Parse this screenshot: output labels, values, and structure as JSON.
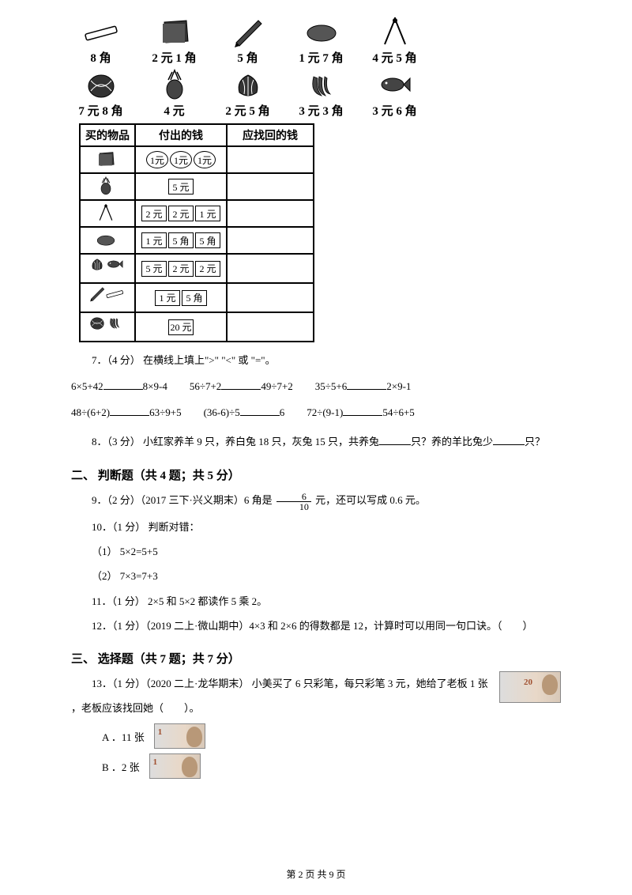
{
  "items_row1": [
    {
      "label": "8 角",
      "svg": "ruler"
    },
    {
      "label": "2 元 1 角",
      "svg": "notebook"
    },
    {
      "label": "5 角",
      "svg": "pencil"
    },
    {
      "label": "1 元 7 角",
      "svg": "eraser"
    },
    {
      "label": "4 元 5 角",
      "svg": "compass"
    }
  ],
  "items_row2": [
    {
      "label": "7 元 8 角",
      "svg": "melon"
    },
    {
      "label": "4 元",
      "svg": "pineapple"
    },
    {
      "label": "2 元 5 角",
      "svg": "cabbage"
    },
    {
      "label": "3 元 3 角",
      "svg": "banana"
    },
    {
      "label": "3 元 6 角",
      "svg": "fish"
    }
  ],
  "shop": {
    "headers": [
      "买的物品",
      "付出的钱",
      "应找回的钱"
    ],
    "rows": [
      {
        "item": "notebook",
        "pay": [
          {
            "t": "coin",
            "v": "1元"
          },
          {
            "t": "coin",
            "v": "1元"
          },
          {
            "t": "coin",
            "v": "1元"
          }
        ]
      },
      {
        "item": "pineapple",
        "pay": [
          {
            "t": "bill",
            "v": "5 元"
          }
        ]
      },
      {
        "item": "compass",
        "pay": [
          {
            "t": "bill",
            "v": "2 元"
          },
          {
            "t": "bill",
            "v": "2 元"
          },
          {
            "t": "bill",
            "v": "1 元"
          }
        ]
      },
      {
        "item": "eraser",
        "pay": [
          {
            "t": "bill",
            "v": "1 元"
          },
          {
            "t": "bill",
            "v": "5 角"
          },
          {
            "t": "bill",
            "v": "5 角"
          }
        ]
      },
      {
        "item": "cabbage+fish",
        "pay": [
          {
            "t": "bill",
            "v": "5 元"
          },
          {
            "t": "bill",
            "v": "2 元"
          },
          {
            "t": "bill",
            "v": "2 元"
          }
        ]
      },
      {
        "item": "pencil+ruler",
        "pay": [
          {
            "t": "bill",
            "v": "1 元"
          },
          {
            "t": "bill",
            "v": "5 角"
          }
        ]
      },
      {
        "item": "melon+banana",
        "pay": [
          {
            "t": "bill",
            "v": "20 元"
          }
        ]
      }
    ]
  },
  "q7": {
    "stem": "7．（4 分） 在横线上填上\">\" \"<\" 或 \"=\"。",
    "r1": [
      [
        "6×5+42",
        "8×9-4"
      ],
      [
        "56÷7+2",
        "49÷7+2"
      ],
      [
        "35÷5+6",
        "2×9-1"
      ]
    ],
    "r2": [
      [
        "48÷(6+2)",
        "63÷9+5"
      ],
      [
        "(36-6)÷5",
        "6"
      ],
      [
        "72÷(9-1)",
        "54÷6+5"
      ]
    ]
  },
  "q8": "8．（3 分） 小红家养羊 9 只，养白兔 18 只，灰兔 15 只，共养兔",
  "q8b": "只？养的羊比兔少",
  "q8c": "只？",
  "sec2": "二、 判断题（共 4 题；共 5 分）",
  "q9a": "9．（2 分）（2017 三下·兴义期末）6 角是 ",
  "q9_frac": {
    "num": "6",
    "den": "10"
  },
  "q9b": " 元，还可以写成 0.6 元。",
  "q10": "10．（1 分） 判断对错：",
  "q10_1": "（1） 5×2=5+5",
  "q10_2": "（2） 7×3=7+3",
  "q11": "11．（1 分） 2×5 和 5×2 都读作 5 乘 2。",
  "q12": "12．（1 分）（2019 二上·微山期中）4×3 和 2×6 的得数都是 12，计算时可以用同一句口诀。（　　）",
  "sec3": "三、 选择题（共 7 题；共 7 分）",
  "q13a": "13．（1 分）（2020 二上·龙华期末） 小美买了 6 只彩笔，每只彩笔 3 元，她给了老板 1 张",
  "q13b": "，老板应该找回她（　　）。",
  "q13_rmb": "20",
  "optA": "A ．11 张",
  "optB": "B ．2 张",
  "opt_rmb": "1",
  "footer": "第 2 页 共 9 页"
}
